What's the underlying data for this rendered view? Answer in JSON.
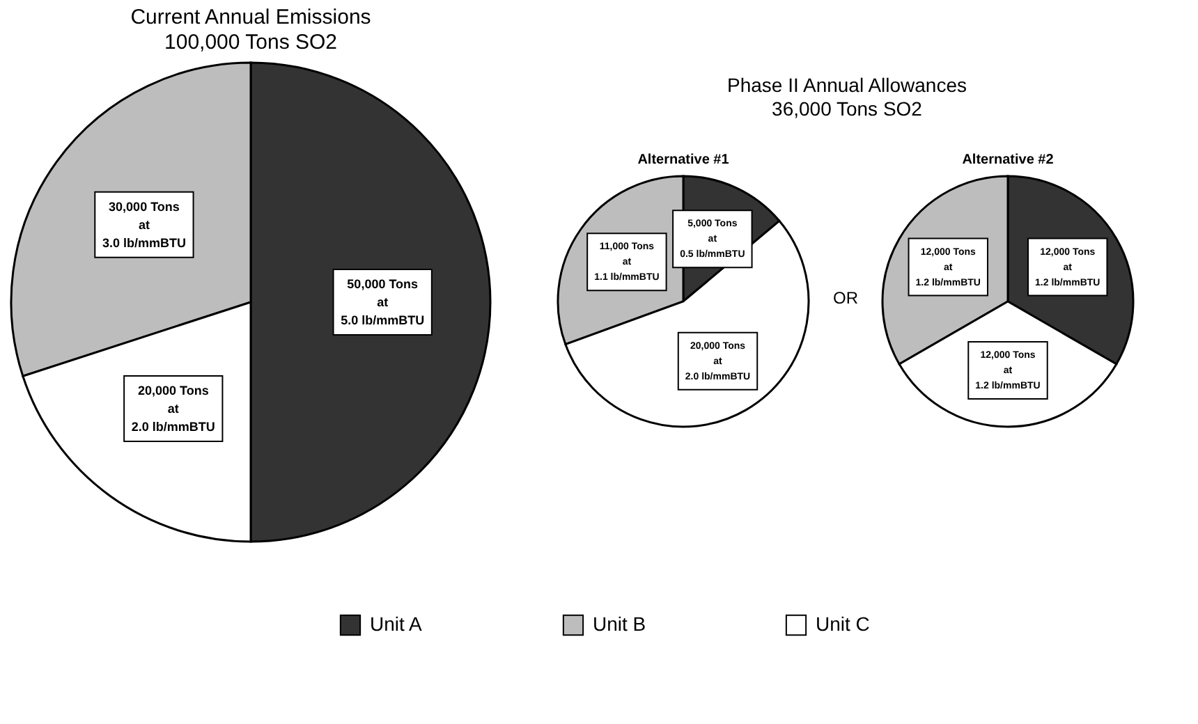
{
  "chart_data": [
    {
      "type": "pie",
      "title": "Current Annual Emissions",
      "subtitle": "100,000 Tons SO2",
      "categories": [
        "Unit A",
        "Unit B",
        "Unit C"
      ],
      "values": [
        50000,
        30000,
        20000
      ],
      "colors": [
        "#333333",
        "#bdbdbd",
        "#ffffff"
      ],
      "value_labels": [
        "50,000 Tons\nat\n5.0 lb/mmBTU",
        "30,000 Tons\nat\n3.0 lb/mmBTU",
        "20,000 Tons\nat\n2.0 lb/mmBTU"
      ],
      "legend": "bottom"
    },
    {
      "type": "pie",
      "title": "Alternative #1",
      "categories": [
        null,
        null,
        null
      ],
      "values": [
        5000,
        11000,
        20000
      ],
      "colors": [
        "#333333",
        "#bdbdbd",
        "#ffffff"
      ],
      "value_labels": [
        "5,000 Tons\nat\n0.5 lb/mmBTU",
        "11,000 Tons\nat\n1.1 lb/mmBTU",
        "20,000 Tons\nat\n2.0 lb/mmBTU"
      ],
      "annotations": [
        "Phase II Annual Allowances\n36,000 Tons SO2",
        "OR"
      ]
    },
    {
      "type": "pie",
      "title": "Alternative #2",
      "categories": [
        null,
        null,
        null
      ],
      "values": [
        12000,
        12000,
        12000
      ],
      "colors": [
        "#333333",
        "#bdbdbd",
        "#ffffff"
      ],
      "value_labels": [
        "12,000 Tons\nat\n1.2 lb/mmBTU",
        "12,000 Tons\nat\n1.2 lb/mmBTU",
        "12,000 Tons\nat\n1.2 lb/mmBTU"
      ]
    }
  ]
}
